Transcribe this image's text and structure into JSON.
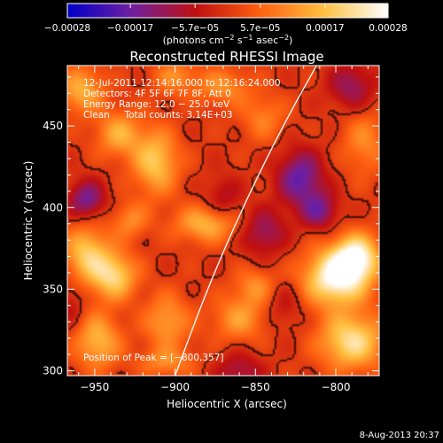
{
  "chart_data": {
    "type": "heatmap",
    "title": "Reconstructed RHESSI Image",
    "xlabel": "Heliocentric X (arcsec)",
    "ylabel": "Heliocentric Y (arcsec)",
    "xlim": [
      -967,
      -773
    ],
    "ylim": [
      297,
      487
    ],
    "x_ticks": [
      {
        "value": -950,
        "label": "−950"
      },
      {
        "value": -900,
        "label": "−900"
      },
      {
        "value": -850,
        "label": "−850"
      },
      {
        "value": -800,
        "label": "−800"
      }
    ],
    "y_ticks": [
      {
        "value": 300,
        "label": "300"
      },
      {
        "value": 350,
        "label": "350"
      },
      {
        "value": 400,
        "label": "400"
      },
      {
        "value": 450,
        "label": "450"
      }
    ],
    "colorbar": {
      "range": [
        -0.00028,
        0.00028
      ],
      "ticks": [
        {
          "value": -0.00028,
          "label": "−0.00028"
        },
        {
          "value": -0.00017,
          "label": "−0.00017"
        },
        {
          "value": -5.7e-05,
          "label": "−5.7e−05"
        },
        {
          "value": 5.7e-05,
          "label": "5.7e−05"
        },
        {
          "value": 0.00017,
          "label": "0.00017"
        },
        {
          "value": 0.00028,
          "label": "0.00028"
        }
      ],
      "units_prefix": "(photons cm",
      "units_sup1": "−2",
      "units_mid": " s",
      "units_sup2": "−1",
      "units_mid2": " asec",
      "units_sup3": "−2",
      "units_suffix": ")",
      "colors": [
        "#0000c8",
        "#7020a0",
        "#c01010",
        "#ff6010",
        "#ffc040",
        "#ffffff"
      ]
    },
    "annotations": [
      "12-Jul-2011 12:14:16.000 to 12:16:24.000",
      "Detectors: 4F 5F 6F 7F 8F, Att 0",
      "Energy Range: 12.0 − 25.0 keV",
      "Clean     Total counts: 3.14E+03"
    ],
    "peak_label": "Position of Peak = [−800,357]",
    "peak": [
      -800,
      357
    ],
    "limb": [
      [
        -900,
        297
      ],
      [
        -880,
        350
      ],
      [
        -858,
        400
      ],
      [
        -833,
        450
      ],
      [
        -812,
        487
      ]
    ],
    "sources": [
      {
        "x": -800,
        "y": 357,
        "v": 0.00028,
        "sx": 14,
        "sy": 12
      },
      {
        "x": -787,
        "y": 370,
        "v": 0.00024,
        "sx": 10,
        "sy": 10
      },
      {
        "x": -790,
        "y": 318,
        "v": 0.00022,
        "sx": 14,
        "sy": 12
      },
      {
        "x": -860,
        "y": 332,
        "v": 0.00012,
        "sx": 12,
        "sy": 10
      },
      {
        "x": -850,
        "y": 352,
        "v": 0.0001,
        "sx": 9,
        "sy": 8
      },
      {
        "x": -880,
        "y": 390,
        "v": 0.00016,
        "sx": 14,
        "sy": 8
      },
      {
        "x": -912,
        "y": 428,
        "v": 0.00018,
        "sx": 10,
        "sy": 14
      },
      {
        "x": -935,
        "y": 445,
        "v": 0.00014,
        "sx": 10,
        "sy": 10
      },
      {
        "x": -955,
        "y": 372,
        "v": 0.00018,
        "sx": 10,
        "sy": 12
      },
      {
        "x": -938,
        "y": 358,
        "v": 0.0002,
        "sx": 10,
        "sy": 10
      },
      {
        "x": -928,
        "y": 392,
        "v": 0.0001,
        "sx": 8,
        "sy": 8
      },
      {
        "x": -948,
        "y": 318,
        "v": 0.00016,
        "sx": 10,
        "sy": 12
      },
      {
        "x": -905,
        "y": 330,
        "v": 0.00013,
        "sx": 10,
        "sy": 12
      },
      {
        "x": -905,
        "y": 305,
        "v": 0.0001,
        "sx": 12,
        "sy": 6
      },
      {
        "x": -958,
        "y": 472,
        "v": 0.00015,
        "sx": 10,
        "sy": 10
      },
      {
        "x": -870,
        "y": 474,
        "v": 0.00011,
        "sx": 12,
        "sy": 8
      },
      {
        "x": -845,
        "y": 455,
        "v": 9e-05,
        "sx": 10,
        "sy": 10
      },
      {
        "x": -782,
        "y": 440,
        "v": 0.0001,
        "sx": 10,
        "sy": 14
      },
      {
        "x": -900,
        "y": 480,
        "v": 0.0001,
        "sx": 10,
        "sy": 8
      },
      {
        "x": -790,
        "y": 474,
        "v": -0.00012,
        "sx": 10,
        "sy": 10
      },
      {
        "x": -822,
        "y": 418,
        "v": -0.00018,
        "sx": 10,
        "sy": 12
      },
      {
        "x": -810,
        "y": 398,
        "v": -0.00014,
        "sx": 8,
        "sy": 8
      },
      {
        "x": -955,
        "y": 405,
        "v": -0.00016,
        "sx": 8,
        "sy": 8
      },
      {
        "x": -845,
        "y": 385,
        "v": -0.00012,
        "sx": 10,
        "sy": 10
      },
      {
        "x": -870,
        "y": 405,
        "v": -8e-05,
        "sx": 8,
        "sy": 10
      },
      {
        "x": -860,
        "y": 300,
        "v": -0.0001,
        "sx": 10,
        "sy": 8
      },
      {
        "x": -832,
        "y": 340,
        "v": -6e-05,
        "sx": 8,
        "sy": 10
      },
      {
        "x": -965,
        "y": 340,
        "v": -6e-05,
        "sx": 6,
        "sy": 10
      }
    ]
  },
  "footer": {
    "date": "8-Aug-2013 20:37"
  }
}
